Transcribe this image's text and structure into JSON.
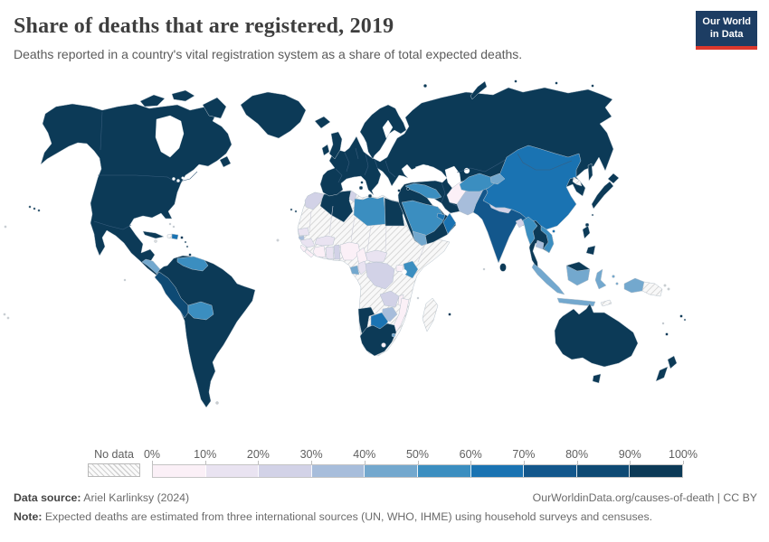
{
  "header": {
    "title": "Share of deaths that are registered, 2019",
    "subtitle": "Deaths reported in a country's vital registration system as a share of total expected deaths."
  },
  "logo": {
    "line1": "Our World",
    "line2": "in Data",
    "bg_color": "#1d3d63",
    "bar_color": "#dc382c"
  },
  "legend": {
    "no_data_label": "No data",
    "tick_labels": [
      "0%",
      "10%",
      "20%",
      "30%",
      "40%",
      "50%",
      "60%",
      "70%",
      "80%",
      "90%",
      "100%"
    ],
    "bin_colors": [
      "#fbf0f7",
      "#e9e3f1",
      "#d2d2e7",
      "#a7bddb",
      "#73a8ce",
      "#3b8ec0",
      "#1a73b2",
      "#13578c",
      "#0e4a74",
      "#0c3a57"
    ],
    "no_data_pattern": "diagonal-hatch"
  },
  "footer": {
    "datasource_label": "Data source:",
    "datasource_value": "Ariel Karlinksy (2024)",
    "attribution": "OurWorldinData.org/causes-of-death | CC BY",
    "note_label": "Note:",
    "note_value": "Expected deaths are estimated from three international sources (UN, WHO, IHME) using household surveys and censuses."
  },
  "chart_data": {
    "type": "choropleth",
    "title": "Share of deaths that are registered",
    "year": 2019,
    "unit": "%",
    "projection": "world",
    "scale": {
      "bins": [
        {
          "range": "0-10%",
          "color": "#fbf0f7"
        },
        {
          "range": "10-20%",
          "color": "#e9e3f1"
        },
        {
          "range": "20-30%",
          "color": "#d2d2e7"
        },
        {
          "range": "30-40%",
          "color": "#a7bddb"
        },
        {
          "range": "40-50%",
          "color": "#73a8ce"
        },
        {
          "range": "50-60%",
          "color": "#3b8ec0"
        },
        {
          "range": "60-70%",
          "color": "#1a73b2"
        },
        {
          "range": "70-80%",
          "color": "#13578c"
        },
        {
          "range": "80-90%",
          "color": "#0e4a74"
        },
        {
          "range": "90-100%",
          "color": "#0c3a57"
        }
      ],
      "no_data": {
        "label": "No data",
        "style": "diagonal-hatch"
      }
    },
    "values_by_bin": {
      "90-100%": [
        "United States",
        "Canada",
        "Greenland",
        "Mexico",
        "Cuba",
        "Panama",
        "Costa Rica",
        "Colombia",
        "Ecuador",
        "Brazil",
        "Argentina",
        "Chile",
        "Paraguay",
        "Uruguay",
        "Guyana",
        "Suriname",
        "United Kingdom",
        "Ireland",
        "Iceland",
        "France",
        "Spain",
        "Portugal",
        "Germany",
        "Italy",
        "Norway",
        "Sweden",
        "Finland",
        "Denmark",
        "Poland",
        "Ukraine",
        "Romania",
        "Greece",
        "Russia",
        "Kazakhstan",
        "Turkey",
        "Iran",
        "Israel",
        "Egypt",
        "Algeria",
        "Namibia",
        "South Africa",
        "Japan",
        "South Korea",
        "Thailand",
        "Laos",
        "Malaysia",
        "Philippines",
        "Sri Lanka",
        "Australia",
        "New Zealand",
        "Fiji"
      ],
      "80-90%": [
        "Peru"
      ],
      "70-80%": [
        "India"
      ],
      "60-70%": [
        "China",
        "Mongolia",
        "Oman",
        "United Arab Emirates",
        "Botswana",
        "Dominican Republic"
      ],
      "50-60%": [
        "Saudi Arabia",
        "Libya",
        "Kenya",
        "Venezuela",
        "Bolivia",
        "Myanmar",
        "Vietnam",
        "Iraq",
        "Syria",
        "Uzbekistan",
        "Turkmenistan",
        "Gabon"
      ],
      "40-50%": [
        "Yemen",
        "Indonesia",
        "Guatemala",
        "Honduras",
        "Nicaragua",
        "Tajikistan",
        "Kyrgyzstan",
        "Eswatini"
      ],
      "30-40%": [
        "Pakistan",
        "Cambodia",
        "Zimbabwe",
        "Guinea-Bissau"
      ],
      "20-30%": [
        "Morocco",
        "Tunisia",
        "Zambia",
        "Democratic Republic of Congo",
        "Nepal",
        "Bangladesh",
        "Togo",
        "Benin"
      ],
      "10-20%": [
        "Senegal",
        "Guinea",
        "Ghana",
        "Burkina Faso",
        "Central African Republic",
        "Congo",
        "Malawi"
      ],
      "0-10%": [
        "Afghanistan",
        "Nigeria",
        "Cameroon",
        "Cote d'Ivoire",
        "Sierra Leone",
        "Liberia",
        "Uganda",
        "Rwanda",
        "Mozambique",
        "Lesotho"
      ],
      "No data": [
        "North Korea",
        "Western Sahara",
        "Mauritania",
        "Mali",
        "Niger",
        "Chad",
        "Sudan",
        "South Sudan",
        "Ethiopia",
        "Somalia",
        "Eritrea",
        "Djibouti",
        "Tanzania",
        "Angola",
        "Madagascar",
        "Haiti",
        "Papua New Guinea",
        "Timor"
      ]
    }
  }
}
